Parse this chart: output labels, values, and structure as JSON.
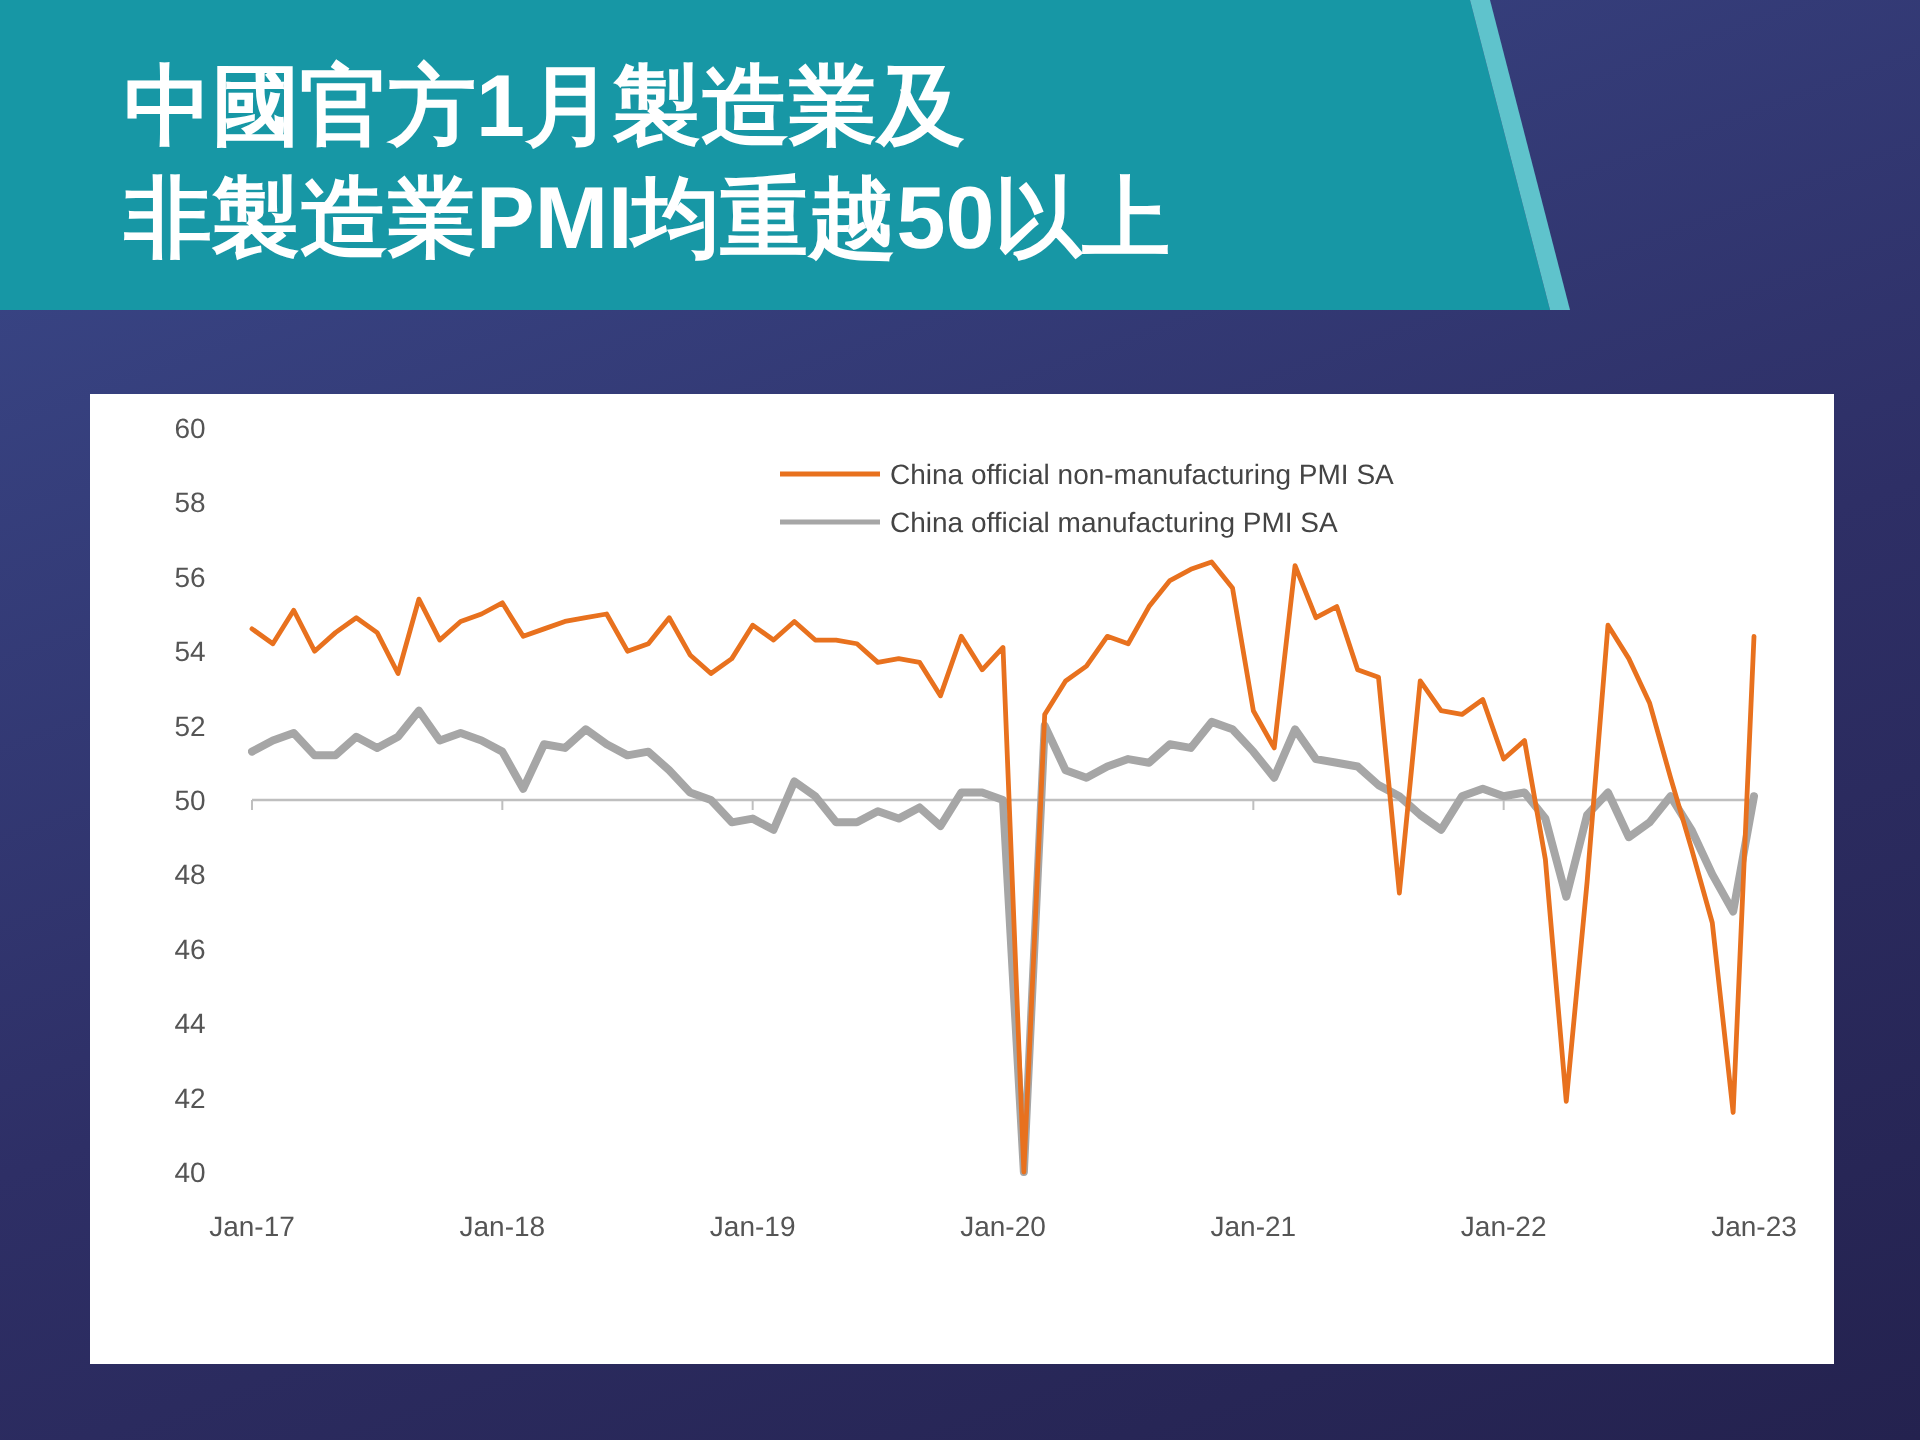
{
  "chart_data": {
    "type": "line",
    "title": "中國官方1月製造業及非製造業PMI均重越50以上",
    "x": [
      "2017-01",
      "2017-02",
      "2017-03",
      "2017-04",
      "2017-05",
      "2017-06",
      "2017-07",
      "2017-08",
      "2017-09",
      "2017-10",
      "2017-11",
      "2017-12",
      "2018-01",
      "2018-02",
      "2018-03",
      "2018-04",
      "2018-05",
      "2018-06",
      "2018-07",
      "2018-08",
      "2018-09",
      "2018-10",
      "2018-11",
      "2018-12",
      "2019-01",
      "2019-02",
      "2019-03",
      "2019-04",
      "2019-05",
      "2019-06",
      "2019-07",
      "2019-08",
      "2019-09",
      "2019-10",
      "2019-11",
      "2019-12",
      "2020-01",
      "2020-02",
      "2020-03",
      "2020-04",
      "2020-05",
      "2020-06",
      "2020-07",
      "2020-08",
      "2020-09",
      "2020-10",
      "2020-11",
      "2020-12",
      "2021-01",
      "2021-02",
      "2021-03",
      "2021-04",
      "2021-05",
      "2021-06",
      "2021-07",
      "2021-08",
      "2021-09",
      "2021-10",
      "2021-11",
      "2021-12",
      "2022-01",
      "2022-02",
      "2022-03",
      "2022-04",
      "2022-05",
      "2022-06",
      "2022-07",
      "2022-08",
      "2022-09",
      "2022-10",
      "2022-11",
      "2022-12",
      "2023-01"
    ],
    "series": [
      {
        "name": "China official non-manufacturing PMI SA",
        "color": "#e8711e",
        "values": [
          54.6,
          54.2,
          55.1,
          54.0,
          54.5,
          54.9,
          54.5,
          53.4,
          55.4,
          54.3,
          54.8,
          55.0,
          55.3,
          54.4,
          54.6,
          54.8,
          54.9,
          55.0,
          54.0,
          54.2,
          54.9,
          53.9,
          53.4,
          53.8,
          54.7,
          54.3,
          54.8,
          54.3,
          54.3,
          54.2,
          53.7,
          53.8,
          53.7,
          52.8,
          54.4,
          53.5,
          54.1,
          40,
          52.3,
          53.2,
          53.6,
          54.4,
          54.2,
          55.2,
          55.9,
          56.2,
          56.4,
          55.7,
          52.4,
          51.4,
          56.3,
          54.9,
          55.2,
          53.5,
          53.3,
          47.5,
          53.2,
          52.4,
          52.3,
          52.7,
          51.1,
          51.6,
          48.4,
          41.9,
          47.8,
          54.7,
          53.8,
          52.6,
          50.6,
          48.7,
          46.7,
          41.6,
          54.4
        ]
      },
      {
        "name": "China official manufacturing PMI SA",
        "color": "#a6a6a6",
        "values": [
          51.3,
          51.6,
          51.8,
          51.2,
          51.2,
          51.7,
          51.4,
          51.7,
          52.4,
          51.6,
          51.8,
          51.6,
          51.3,
          50.3,
          51.5,
          51.4,
          51.9,
          51.5,
          51.2,
          51.3,
          50.8,
          50.2,
          50.0,
          49.4,
          49.5,
          49.2,
          50.5,
          50.1,
          49.4,
          49.4,
          49.7,
          49.5,
          49.8,
          49.3,
          50.2,
          50.2,
          50.0,
          40,
          52.0,
          50.8,
          50.6,
          50.9,
          51.1,
          51.0,
          51.5,
          51.4,
          52.1,
          51.9,
          51.3,
          50.6,
          51.9,
          51.1,
          51.0,
          50.9,
          50.4,
          50.1,
          49.6,
          49.2,
          50.1,
          50.3,
          50.1,
          50.2,
          49.5,
          47.4,
          49.6,
          50.2,
          49.0,
          49.4,
          50.1,
          49.2,
          48.0,
          47.0,
          50.1
        ]
      }
    ],
    "xlim": [
      "2017-01",
      "2023-01"
    ],
    "xticks": [
      {
        "value": "2017-01",
        "label": "Jan-17"
      },
      {
        "value": "2018-01",
        "label": "Jan-18"
      },
      {
        "value": "2019-01",
        "label": "Jan-19"
      },
      {
        "value": "2020-01",
        "label": "Jan-20"
      },
      {
        "value": "2021-01",
        "label": "Jan-21"
      },
      {
        "value": "2022-01",
        "label": "Jan-22"
      },
      {
        "value": "2023-01",
        "label": "Jan-23"
      }
    ],
    "ylim": [
      40,
      60
    ],
    "yticks": [
      40,
      42,
      44,
      46,
      48,
      50,
      52,
      54,
      56,
      58,
      60
    ],
    "ref_lines": [
      {
        "axis": "y",
        "value": 50,
        "color": "#bfbfbf"
      }
    ],
    "grid": false,
    "legend": "top right",
    "line_style": "solid",
    "marker": "none"
  }
}
